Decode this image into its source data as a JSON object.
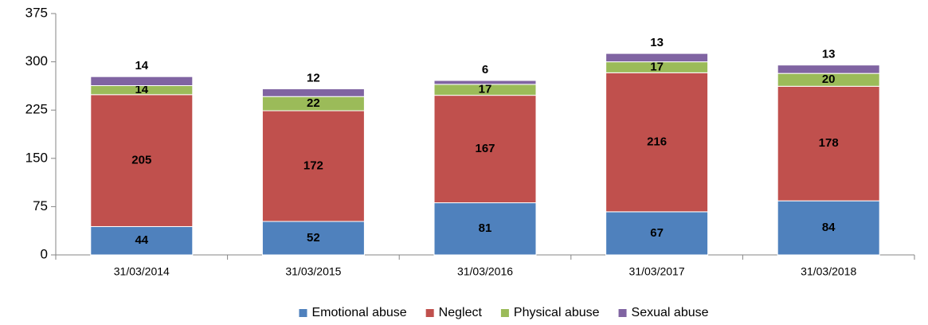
{
  "chart_data": {
    "type": "stacked_bar",
    "categories": [
      "31/03/2014",
      "31/03/2015",
      "31/03/2016",
      "31/03/2017",
      "31/03/2018"
    ],
    "series": [
      {
        "name": "Emotional abuse",
        "color": "#4f81bd",
        "values": [
          44,
          52,
          81,
          67,
          84
        ]
      },
      {
        "name": "Neglect",
        "color": "#c0504d",
        "values": [
          205,
          172,
          167,
          216,
          178
        ]
      },
      {
        "name": "Physical abuse",
        "color": "#9bbb59",
        "values": [
          14,
          22,
          17,
          17,
          20
        ]
      },
      {
        "name": "Sexual abuse",
        "color": "#8064a2",
        "values": [
          14,
          12,
          6,
          13,
          13
        ]
      }
    ],
    "ylim": [
      0,
      375
    ],
    "yticks": [
      0,
      75,
      150,
      225,
      300,
      375
    ],
    "grid": false,
    "legend": "bottom"
  }
}
